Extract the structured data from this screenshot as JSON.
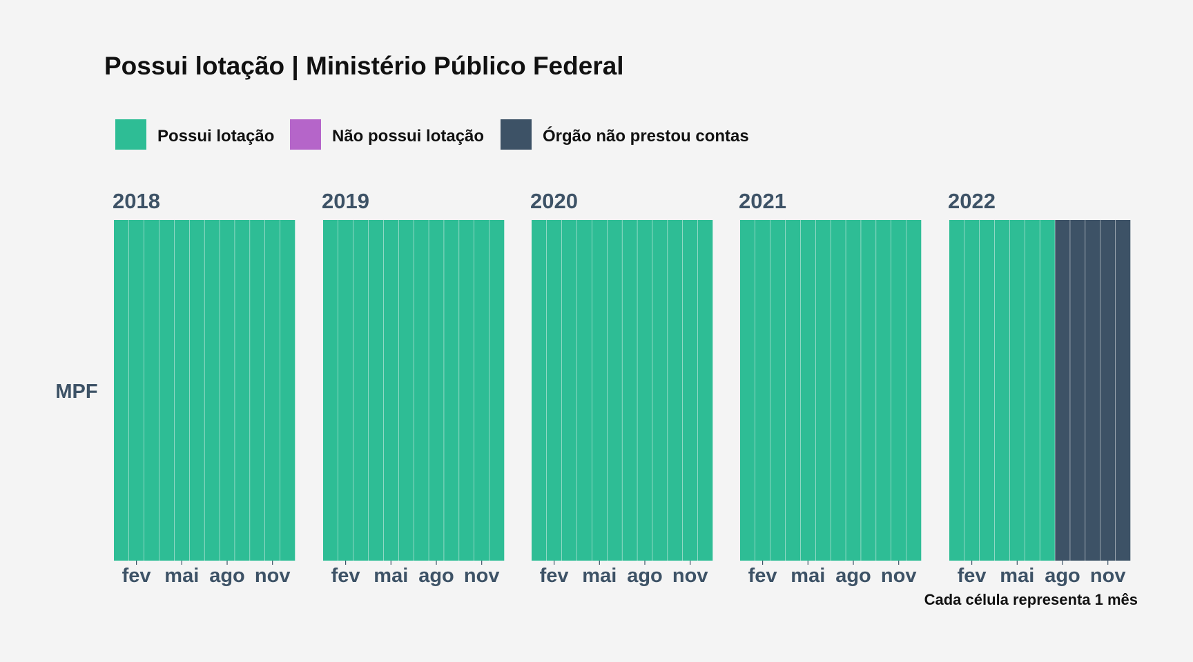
{
  "chart_data": {
    "type": "heatmap",
    "title": "Possui lotação | Ministério Público Federal",
    "caption": "Cada célula representa 1 mês",
    "row_label": "MPF",
    "legend": [
      {
        "key": "possui",
        "label": "Possui lotação",
        "color": "#2ebd95"
      },
      {
        "key": "nao_possui",
        "label": "Não possui lotação",
        "color": "#b565c9"
      },
      {
        "key": "nao_prestou",
        "label": "Órgão não prestou contas",
        "color": "#3d5266"
      }
    ],
    "legend_position": "top-left",
    "month_tick_labels": [
      {
        "month": 2,
        "label": "fev"
      },
      {
        "month": 5,
        "label": "mai"
      },
      {
        "month": 8,
        "label": "ago"
      },
      {
        "month": 11,
        "label": "nov"
      }
    ],
    "facets": [
      {
        "year": "2018",
        "months": [
          "possui",
          "possui",
          "possui",
          "possui",
          "possui",
          "possui",
          "possui",
          "possui",
          "possui",
          "possui",
          "possui",
          "possui"
        ]
      },
      {
        "year": "2019",
        "months": [
          "possui",
          "possui",
          "possui",
          "possui",
          "possui",
          "possui",
          "possui",
          "possui",
          "possui",
          "possui",
          "possui",
          "possui"
        ]
      },
      {
        "year": "2020",
        "months": [
          "possui",
          "possui",
          "possui",
          "possui",
          "possui",
          "possui",
          "possui",
          "possui",
          "possui",
          "possui",
          "possui",
          "possui"
        ]
      },
      {
        "year": "2021",
        "months": [
          "possui",
          "possui",
          "possui",
          "possui",
          "possui",
          "possui",
          "possui",
          "possui",
          "possui",
          "possui",
          "possui",
          "possui"
        ]
      },
      {
        "year": "2022",
        "months": [
          "possui",
          "possui",
          "possui",
          "possui",
          "possui",
          "possui",
          "possui",
          "nao_prestou",
          "nao_prestou",
          "nao_prestou",
          "nao_prestou",
          "nao_prestou"
        ]
      }
    ],
    "grid": false
  }
}
